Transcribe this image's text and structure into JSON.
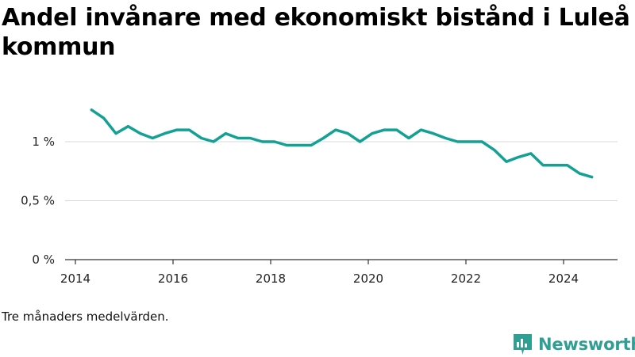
{
  "title": "Andel invånare med ekonomiskt bistånd i Luleå kommun",
  "footnote": "Tre månaders medelvärden.",
  "brand": {
    "name": "Newsworthy",
    "icon": "newsworthy-logo-icon",
    "color": "#2f9e93"
  },
  "chart_data": {
    "type": "line",
    "title": "Andel invånare med ekonomiskt bistånd i Luleå kommun",
    "xlabel": "",
    "ylabel": "",
    "line_color": "#14a195",
    "grid": "horizontal",
    "xlim": [
      2014,
      2025.1
    ],
    "ylim": [
      0,
      1.3
    ],
    "x_ticks": [
      {
        "value": 2014,
        "label": "2014"
      },
      {
        "value": 2016,
        "label": "2016"
      },
      {
        "value": 2018,
        "label": "2018"
      },
      {
        "value": 2020,
        "label": "2020"
      },
      {
        "value": 2022,
        "label": "2022"
      },
      {
        "value": 2024,
        "label": "2024"
      }
    ],
    "y_ticks": [
      {
        "value": 0,
        "label": "0 %"
      },
      {
        "value": 0.5,
        "label": "0,5 %"
      },
      {
        "value": 1,
        "label": "1 %"
      }
    ],
    "series": [
      {
        "x": [
          2014.33,
          2014.58,
          2014.83,
          2015.08,
          2015.33,
          2015.58,
          2015.83,
          2016.08,
          2016.33,
          2016.58,
          2016.83,
          2017.08,
          2017.33,
          2017.58,
          2017.83,
          2018.08,
          2018.33,
          2018.58,
          2018.83,
          2019.08,
          2019.33,
          2019.58,
          2019.83,
          2020.08,
          2020.33,
          2020.58,
          2020.83,
          2021.08,
          2021.33,
          2021.58,
          2021.83,
          2022.08,
          2022.33,
          2022.58,
          2022.83,
          2023.08,
          2023.33,
          2023.58,
          2023.83,
          2024.08,
          2024.33,
          2024.58
        ],
        "values": [
          1.27,
          1.2,
          1.07,
          1.13,
          1.07,
          1.03,
          1.07,
          1.1,
          1.1,
          1.03,
          1.0,
          1.07,
          1.03,
          1.03,
          1.0,
          1.0,
          0.97,
          0.97,
          0.97,
          1.03,
          1.1,
          1.07,
          1.0,
          1.07,
          1.1,
          1.1,
          1.03,
          1.1,
          1.07,
          1.03,
          1.0,
          1.0,
          1.0,
          0.93,
          0.83,
          0.87,
          0.9,
          0.8,
          0.8,
          0.8,
          0.73,
          0.7
        ]
      }
    ]
  }
}
